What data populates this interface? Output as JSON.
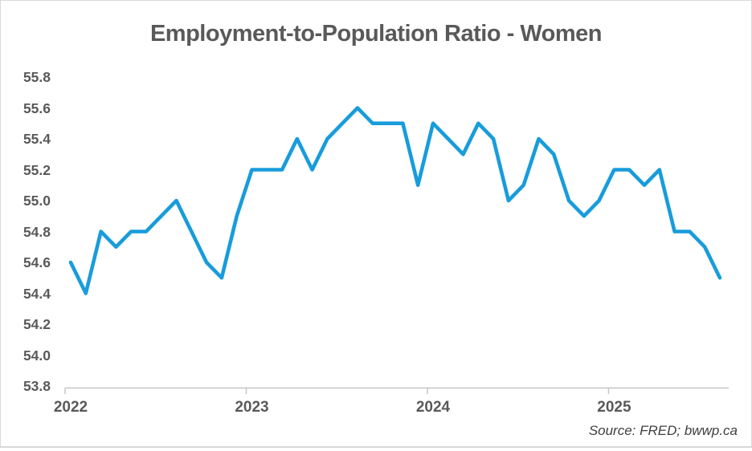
{
  "page": {
    "title": "Employment-to-Population Ratio - Women",
    "source_note": "Source: FRED; bwwp.ca"
  },
  "colors": {
    "line": "#189CDB",
    "title_text": "#595959",
    "label_text": "#595959",
    "source_text": "#3f3f3f",
    "axis_line": "#c6c6c6",
    "frame_border": "#d9d9d9",
    "background": "#ffffff"
  },
  "chart_data": {
    "type": "line",
    "title": "Employment-to-Population Ratio - Women",
    "frequency": "monthly",
    "x_start": "2022-01",
    "x_end": "2025-08",
    "x_tick_labels": [
      "2022",
      "2023",
      "2024",
      "2025"
    ],
    "y_tick_labels": [
      "55.8",
      "55.6",
      "55.4",
      "55.2",
      "55.0",
      "54.8",
      "54.6",
      "54.4",
      "54.2",
      "54.0",
      "53.8"
    ],
    "ylim": [
      53.8,
      55.8
    ],
    "grid": false,
    "legend": false,
    "series": [
      {
        "name": "Employment-to-Population Ratio - Women",
        "values": [
          54.6,
          54.4,
          54.8,
          54.7,
          54.8,
          54.8,
          54.9,
          55.0,
          54.8,
          54.6,
          54.5,
          54.9,
          55.2,
          55.2,
          55.2,
          55.4,
          55.2,
          55.4,
          55.5,
          55.6,
          55.5,
          55.5,
          55.5,
          55.1,
          55.5,
          55.4,
          55.3,
          55.5,
          55.4,
          55.0,
          55.1,
          55.4,
          55.3,
          55.0,
          54.9,
          55.0,
          55.2,
          55.2,
          55.1,
          55.2,
          54.8,
          54.8,
          54.7,
          54.5
        ]
      }
    ]
  }
}
